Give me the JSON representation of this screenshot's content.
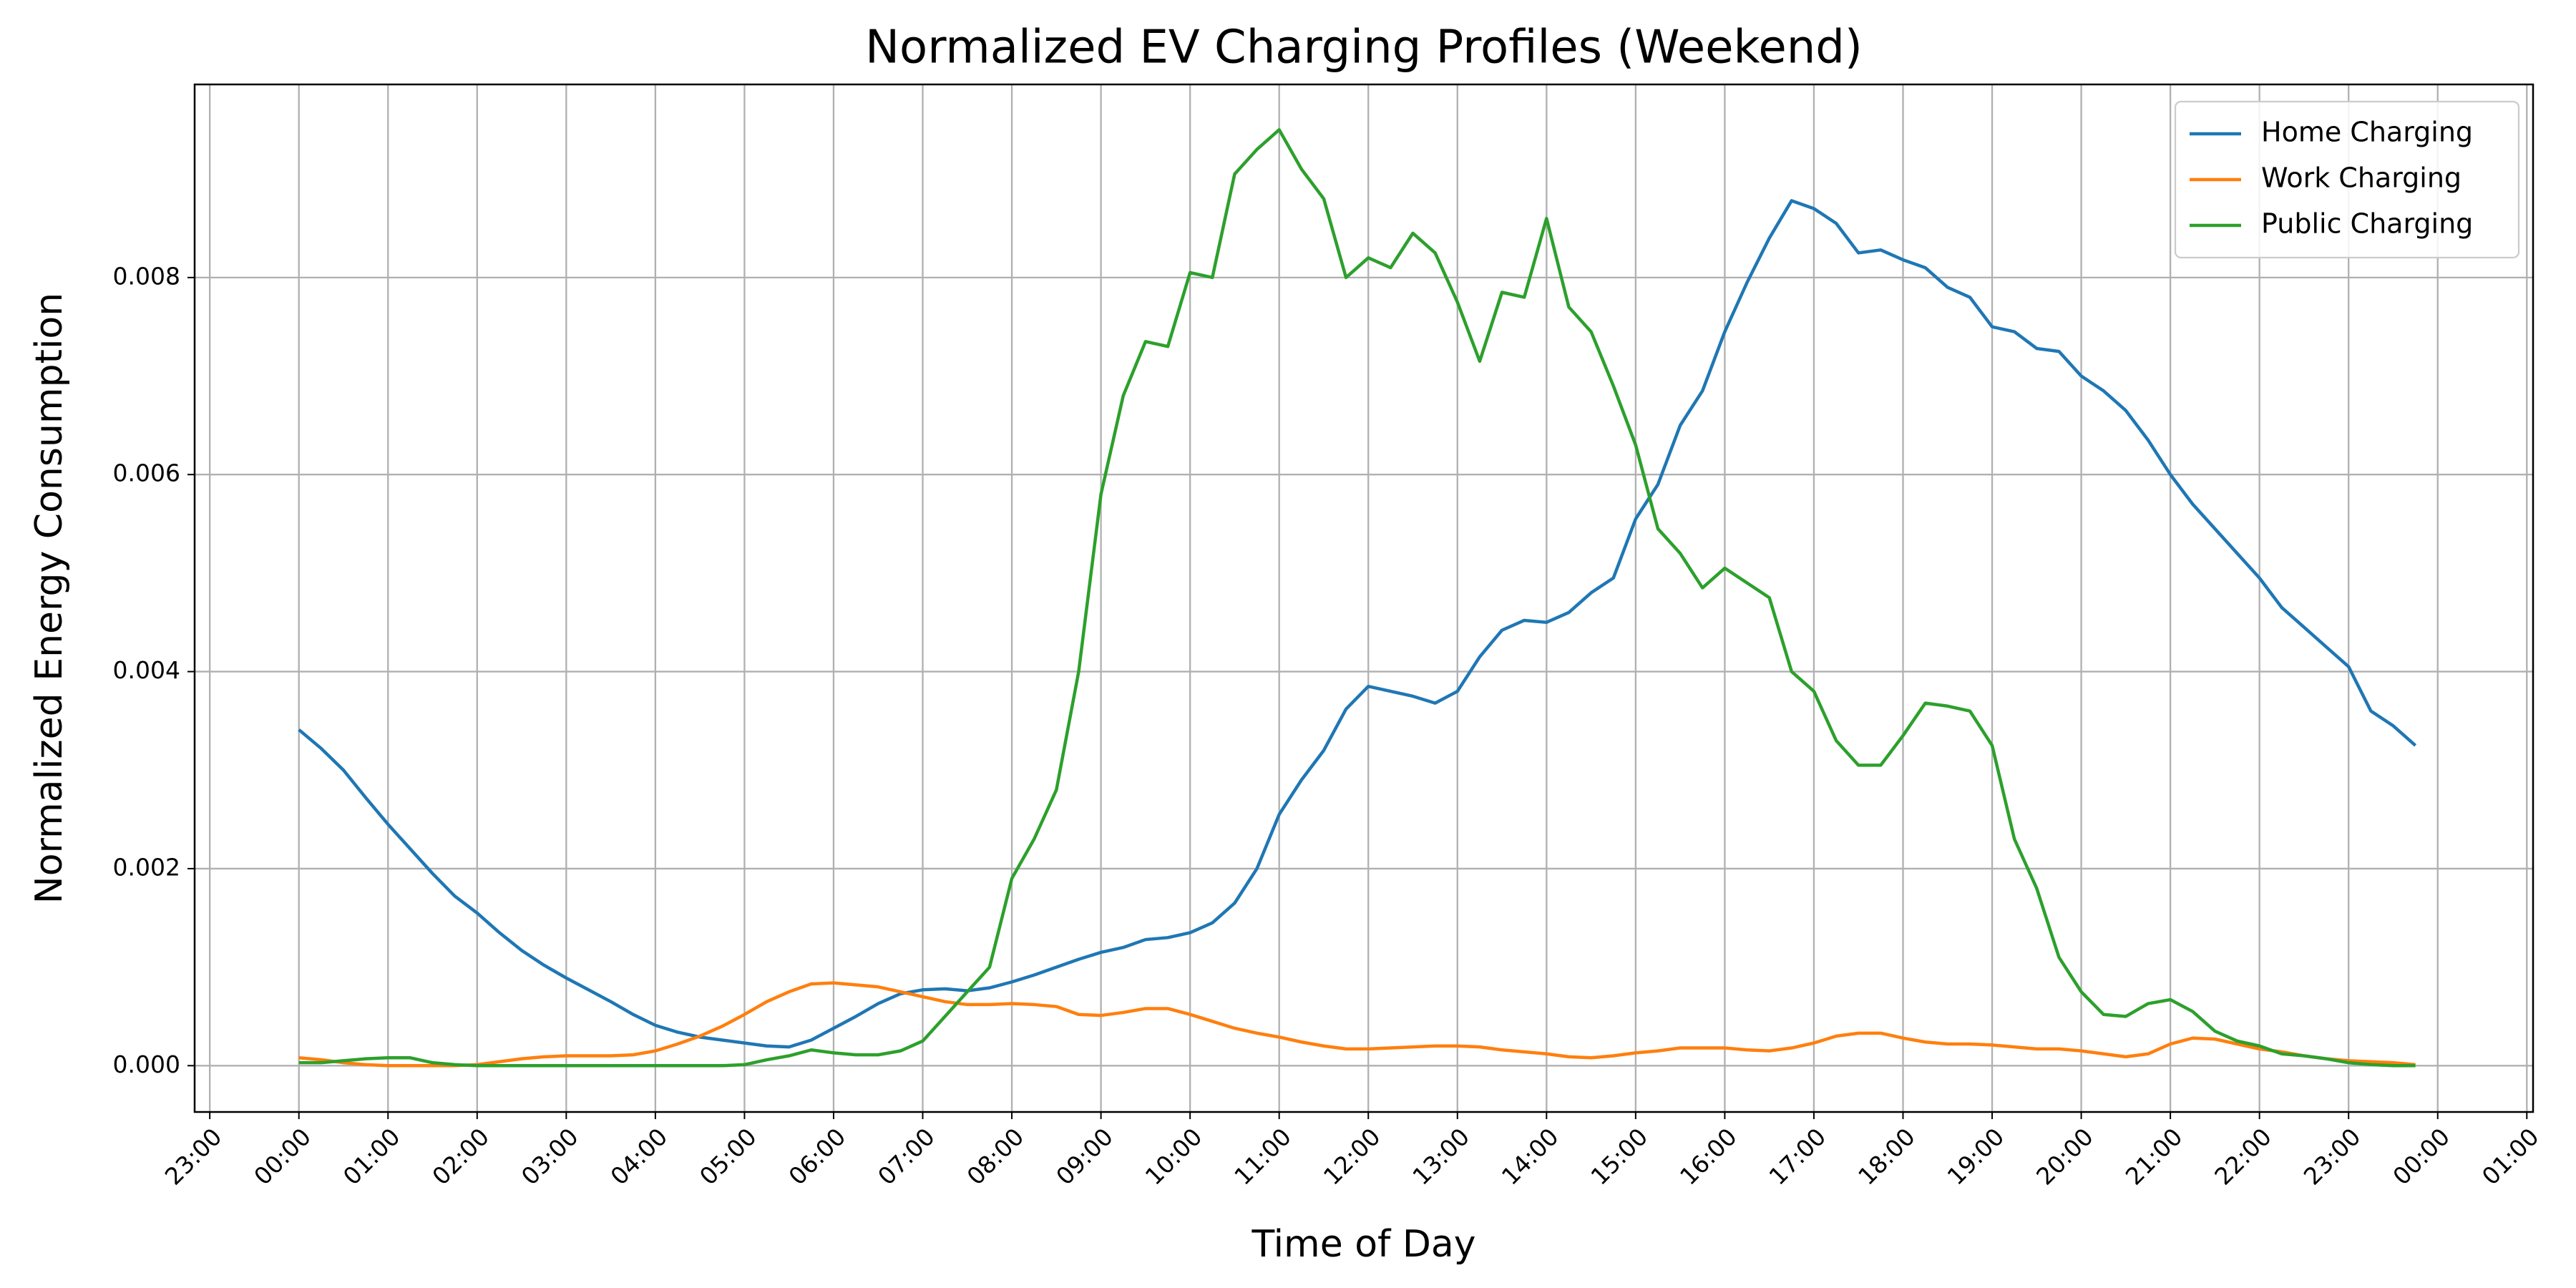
{
  "chart_data": {
    "type": "line",
    "title": "Normalized EV Charging Profiles (Weekend)",
    "xlabel": "Time of Day",
    "ylabel": "Normalized Energy Consumption",
    "x": [
      0,
      0.25,
      0.5,
      0.75,
      1,
      1.25,
      1.5,
      1.75,
      2,
      2.25,
      2.5,
      2.75,
      3,
      3.25,
      3.5,
      3.75,
      4,
      4.25,
      4.5,
      4.75,
      5,
      5.25,
      5.5,
      5.75,
      6,
      6.25,
      6.5,
      6.75,
      7,
      7.25,
      7.5,
      7.75,
      8,
      8.25,
      8.5,
      8.75,
      9,
      9.25,
      9.5,
      9.75,
      10,
      10.25,
      10.5,
      10.75,
      11,
      11.25,
      11.5,
      11.75,
      12,
      12.25,
      12.5,
      12.75,
      13,
      13.25,
      13.5,
      13.75,
      14,
      14.25,
      14.5,
      14.75,
      15,
      15.25,
      15.5,
      15.75,
      16,
      16.25,
      16.5,
      16.75,
      17,
      17.25,
      17.5,
      17.75,
      18,
      18.25,
      18.5,
      18.75,
      19,
      19.25,
      19.5,
      19.75,
      20,
      20.25,
      20.5,
      20.75,
      21,
      21.25,
      21.5,
      21.75,
      22,
      22.25,
      22.5,
      22.75,
      23,
      23.25,
      23.5,
      23.75
    ],
    "series": [
      {
        "name": "Home Charging",
        "color": "#1f77b4",
        "values": [
          0.00341,
          0.00322,
          0.003,
          0.00272,
          0.00245,
          0.0022,
          0.00195,
          0.00172,
          0.00155,
          0.00135,
          0.00117,
          0.00102,
          0.00089,
          0.00077,
          0.00065,
          0.00052,
          0.00041,
          0.00034,
          0.00029,
          0.00026,
          0.00023,
          0.0002,
          0.00019,
          0.00026,
          0.00038,
          0.0005,
          0.00063,
          0.00073,
          0.00077,
          0.00078,
          0.00076,
          0.00079,
          0.00085,
          0.00092,
          0.001,
          0.00108,
          0.00115,
          0.0012,
          0.00128,
          0.0013,
          0.00135,
          0.00145,
          0.00165,
          0.002,
          0.00255,
          0.0029,
          0.0032,
          0.00362,
          0.00385,
          0.0038,
          0.00375,
          0.00368,
          0.0038,
          0.00415,
          0.00442,
          0.00452,
          0.0045,
          0.0046,
          0.0048,
          0.00495,
          0.00555,
          0.0059,
          0.0065,
          0.00685,
          0.00745,
          0.00795,
          0.0084,
          0.00878,
          0.0087,
          0.00855,
          0.00825,
          0.00828,
          0.00818,
          0.0081,
          0.0079,
          0.0078,
          0.0075,
          0.00745,
          0.00728,
          0.00725,
          0.007,
          0.00685,
          0.00665,
          0.00635,
          0.006,
          0.0057,
          0.00545,
          0.0052,
          0.00495,
          0.00465,
          0.00445,
          0.00425,
          0.00405,
          0.0036,
          0.00345,
          0.00325
        ]
      },
      {
        "name": "Work Charging",
        "color": "#ff7f0e",
        "values": [
          8e-05,
          6e-05,
          3e-05,
          1e-05,
          0,
          0,
          0,
          0,
          1e-05,
          4e-05,
          7e-05,
          9e-05,
          0.0001,
          0.0001,
          0.0001,
          0.00011,
          0.00015,
          0.00022,
          0.0003,
          0.0004,
          0.00052,
          0.00065,
          0.00075,
          0.00083,
          0.00084,
          0.00082,
          0.0008,
          0.00075,
          0.0007,
          0.00065,
          0.00062,
          0.00062,
          0.00063,
          0.00062,
          0.0006,
          0.00052,
          0.00051,
          0.00054,
          0.00058,
          0.00058,
          0.00052,
          0.00045,
          0.00038,
          0.00033,
          0.00029,
          0.00024,
          0.0002,
          0.00017,
          0.00017,
          0.00018,
          0.00019,
          0.0002,
          0.0002,
          0.00019,
          0.00016,
          0.00014,
          0.00012,
          9e-05,
          8e-05,
          0.0001,
          0.00013,
          0.00015,
          0.00018,
          0.00018,
          0.00018,
          0.00016,
          0.00015,
          0.00018,
          0.00023,
          0.0003,
          0.00033,
          0.00033,
          0.00028,
          0.00024,
          0.00022,
          0.00022,
          0.00021,
          0.00019,
          0.00017,
          0.00017,
          0.00015,
          0.00012,
          9e-05,
          0.00012,
          0.00022,
          0.00028,
          0.00027,
          0.00022,
          0.00017,
          0.00014,
          0.0001,
          7e-05,
          5e-05,
          4e-05,
          3e-05,
          1e-05
        ]
      },
      {
        "name": "Public Charging",
        "color": "#2ca02c",
        "values": [
          3e-05,
          3e-05,
          5e-05,
          7e-05,
          8e-05,
          8e-05,
          3e-05,
          1e-05,
          0,
          0,
          0,
          0,
          0,
          0,
          0,
          0,
          0,
          0,
          0,
          0,
          1e-05,
          6e-05,
          0.0001,
          0.00016,
          0.00013,
          0.00011,
          0.00011,
          0.00015,
          0.00025,
          0.0005,
          0.00075,
          0.001,
          0.0019,
          0.0023,
          0.0028,
          0.004,
          0.0058,
          0.0068,
          0.00735,
          0.0073,
          0.00805,
          0.008,
          0.00905,
          0.0093,
          0.0095,
          0.0091,
          0.0088,
          0.008,
          0.0082,
          0.0081,
          0.00845,
          0.00825,
          0.00775,
          0.00715,
          0.00785,
          0.0078,
          0.0086,
          0.0077,
          0.00745,
          0.0069,
          0.0063,
          0.00545,
          0.0052,
          0.00485,
          0.00505,
          0.0049,
          0.00475,
          0.004,
          0.0038,
          0.0033,
          0.00305,
          0.00305,
          0.00335,
          0.00368,
          0.00365,
          0.0036,
          0.00325,
          0.0023,
          0.0018,
          0.0011,
          0.00075,
          0.00052,
          0.0005,
          0.00063,
          0.00067,
          0.00055,
          0.00035,
          0.00025,
          0.0002,
          0.00012,
          0.0001,
          7e-05,
          3e-05,
          1e-05,
          0,
          0
        ]
      }
    ],
    "xlim": [
      -1.17,
      25.07
    ],
    "ylim": [
      -0.00047,
      0.00996
    ],
    "xticks": [
      {
        "value": -1,
        "label": "23:00"
      },
      {
        "value": 0,
        "label": "00:00"
      },
      {
        "value": 1,
        "label": "01:00"
      },
      {
        "value": 2,
        "label": "02:00"
      },
      {
        "value": 3,
        "label": "03:00"
      },
      {
        "value": 4,
        "label": "04:00"
      },
      {
        "value": 5,
        "label": "05:00"
      },
      {
        "value": 6,
        "label": "06:00"
      },
      {
        "value": 7,
        "label": "07:00"
      },
      {
        "value": 8,
        "label": "08:00"
      },
      {
        "value": 9,
        "label": "09:00"
      },
      {
        "value": 10,
        "label": "10:00"
      },
      {
        "value": 11,
        "label": "11:00"
      },
      {
        "value": 12,
        "label": "12:00"
      },
      {
        "value": 13,
        "label": "13:00"
      },
      {
        "value": 14,
        "label": "14:00"
      },
      {
        "value": 15,
        "label": "15:00"
      },
      {
        "value": 16,
        "label": "16:00"
      },
      {
        "value": 17,
        "label": "17:00"
      },
      {
        "value": 18,
        "label": "18:00"
      },
      {
        "value": 19,
        "label": "19:00"
      },
      {
        "value": 20,
        "label": "20:00"
      },
      {
        "value": 21,
        "label": "21:00"
      },
      {
        "value": 22,
        "label": "22:00"
      },
      {
        "value": 23,
        "label": "23:00"
      },
      {
        "value": 24,
        "label": "00:00"
      },
      {
        "value": 25,
        "label": "01:00"
      }
    ],
    "yticks": [
      {
        "value": 0,
        "label": "0.000"
      },
      {
        "value": 0.002,
        "label": "0.002"
      },
      {
        "value": 0.004,
        "label": "0.004"
      },
      {
        "value": 0.006,
        "label": "0.006"
      },
      {
        "value": 0.008,
        "label": "0.008"
      }
    ],
    "grid": true,
    "legend": "upper right"
  }
}
